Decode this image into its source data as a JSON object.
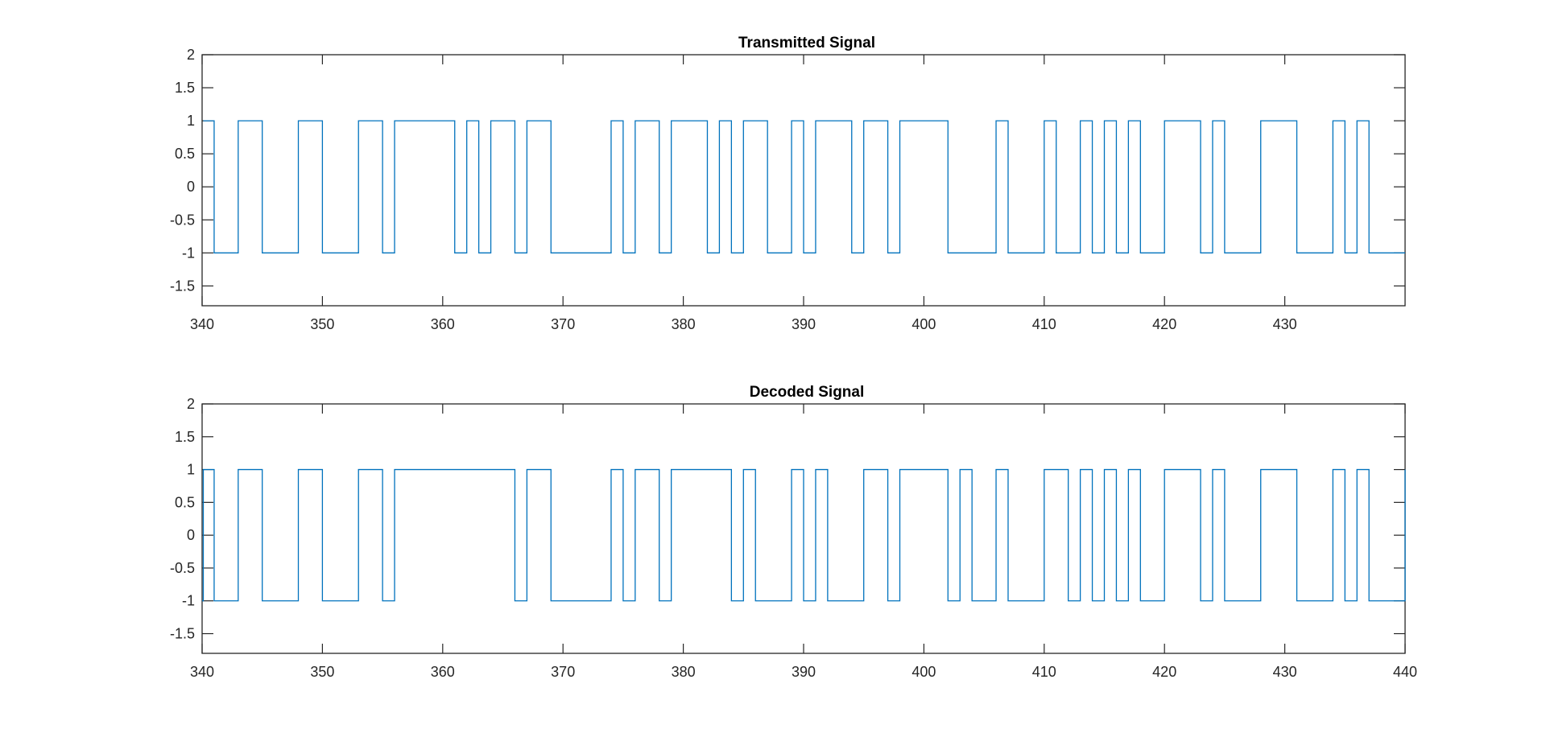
{
  "figure": {
    "background": "#ffffff",
    "line_color": "#0072BD",
    "axis_color": "#262626"
  },
  "chart_data": [
    {
      "type": "line",
      "step": true,
      "title": "Transmitted Signal",
      "xlabel": "",
      "ylabel": "",
      "xlim": [
        340,
        440
      ],
      "ylim": [
        -1.8,
        2
      ],
      "xticks": [
        "340",
        "350",
        "360",
        "370",
        "380",
        "390",
        "400",
        "410",
        "420",
        "430"
      ],
      "yticks": [
        "2",
        "1.5",
        "1",
        "0.5",
        "0",
        "-0.5",
        "-1",
        "-1.5"
      ],
      "ytick_values": [
        2,
        1.5,
        1,
        0.5,
        0,
        -0.5,
        -1,
        -1.5
      ],
      "grid": false,
      "series": [
        {
          "x": [
            340.1,
            341,
            343,
            345,
            348,
            350,
            353,
            355,
            356,
            361,
            362,
            363,
            364,
            366,
            367,
            369,
            374,
            375,
            376,
            378,
            379,
            382,
            383,
            384,
            385,
            387,
            389,
            390,
            391,
            394,
            395,
            397,
            398,
            402,
            406,
            407,
            410,
            411,
            413,
            414,
            415,
            416,
            417,
            418,
            420,
            423,
            424,
            425,
            428,
            431,
            434,
            435,
            436,
            437,
            440
          ],
          "values": [
            1,
            -1,
            1,
            -1,
            1,
            -1,
            1,
            -1,
            1,
            -1,
            1,
            -1,
            1,
            -1,
            1,
            -1,
            1,
            -1,
            1,
            -1,
            1,
            -1,
            1,
            -1,
            1,
            -1,
            1,
            -1,
            1,
            -1,
            1,
            -1,
            1,
            -1,
            1,
            -1,
            1,
            -1,
            1,
            -1,
            1,
            -1,
            1,
            -1,
            1,
            -1,
            1,
            -1,
            1,
            -1,
            1,
            -1,
            1,
            -1,
            -1
          ]
        }
      ]
    },
    {
      "type": "line",
      "step": true,
      "title": "Decoded Signal",
      "xlabel": "",
      "ylabel": "",
      "xlim": [
        340,
        440
      ],
      "ylim": [
        -1.8,
        2
      ],
      "xticks": [
        "340",
        "350",
        "360",
        "370",
        "380",
        "390",
        "400",
        "410",
        "420",
        "430",
        "440"
      ],
      "yticks": [
        "2",
        "1.5",
        "1",
        "0.5",
        "0",
        "-0.5",
        "-1",
        "-1.5"
      ],
      "ytick_values": [
        2,
        1.5,
        1,
        0.5,
        0,
        -0.5,
        -1,
        -1.5
      ],
      "grid": false,
      "series": [
        {
          "x": [
            340,
            340.1,
            341,
            343,
            345,
            348,
            350,
            353,
            355,
            356,
            366,
            367,
            369,
            374,
            375,
            376,
            378,
            379,
            384,
            385,
            386,
            389,
            390,
            391,
            392,
            395,
            397,
            398,
            402,
            403,
            404,
            406,
            407,
            410,
            412,
            413,
            414,
            415,
            416,
            417,
            418,
            420,
            423,
            424,
            425,
            428,
            431,
            434,
            435,
            436,
            437,
            440
          ],
          "values": [
            -1,
            1,
            -1,
            1,
            -1,
            1,
            -1,
            1,
            -1,
            1,
            -1,
            1,
            -1,
            1,
            -1,
            1,
            -1,
            1,
            -1,
            1,
            -1,
            1,
            -1,
            1,
            -1,
            1,
            -1,
            1,
            -1,
            1,
            -1,
            1,
            -1,
            1,
            -1,
            1,
            -1,
            1,
            -1,
            1,
            -1,
            1,
            -1,
            1,
            -1,
            1,
            -1,
            1,
            -1,
            1,
            -1,
            1
          ]
        }
      ]
    }
  ]
}
